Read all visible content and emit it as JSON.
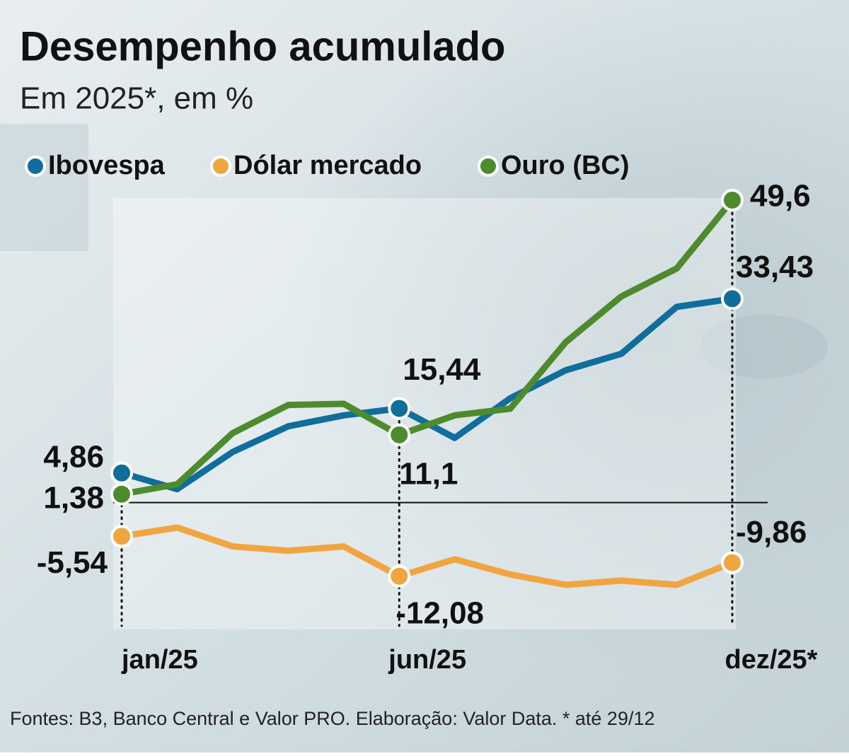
{
  "chart_data": {
    "type": "line",
    "title": "Desempenho acumulado",
    "subtitle": "Em 2025*, em %",
    "categories": [
      "jan/25",
      null,
      null,
      null,
      null,
      "jun/25",
      null,
      null,
      null,
      null,
      null,
      "dez/25*"
    ],
    "series": [
      {
        "name": "Ibovespa",
        "color": "#0f6e9c",
        "values": [
          4.86,
          2.2,
          8.3,
          12.5,
          14.3,
          15.44,
          10.6,
          17.1,
          21.7,
          24.4,
          32.1,
          33.43
        ],
        "value_labels": [
          "4,86",
          null,
          null,
          null,
          null,
          "15,44",
          null,
          null,
          null,
          null,
          null,
          "33,43"
        ]
      },
      {
        "name": "Dólar mercado",
        "color": "#f0a540",
        "values": [
          -5.54,
          -4.1,
          -7.2,
          -7.9,
          -7.2,
          -12.08,
          -9.3,
          -11.8,
          -13.5,
          -12.8,
          -13.5,
          -9.86
        ],
        "value_labels": [
          "-5,54",
          null,
          null,
          null,
          null,
          "-12,08",
          null,
          null,
          null,
          null,
          null,
          "-9,86"
        ]
      },
      {
        "name": "Ouro (BC)",
        "color": "#4e8a2e",
        "values": [
          1.38,
          3.0,
          11.4,
          16.0,
          16.2,
          11.1,
          14.3,
          15.4,
          26.3,
          33.8,
          38.4,
          49.6
        ],
        "value_labels": [
          "1,38",
          null,
          null,
          null,
          null,
          "11,1",
          null,
          null,
          null,
          null,
          null,
          "49,6"
        ]
      }
    ],
    "source": "Fontes: B3, Banco Central e Valor PRO. Elaboração: Valor Data. * até 29/12"
  }
}
